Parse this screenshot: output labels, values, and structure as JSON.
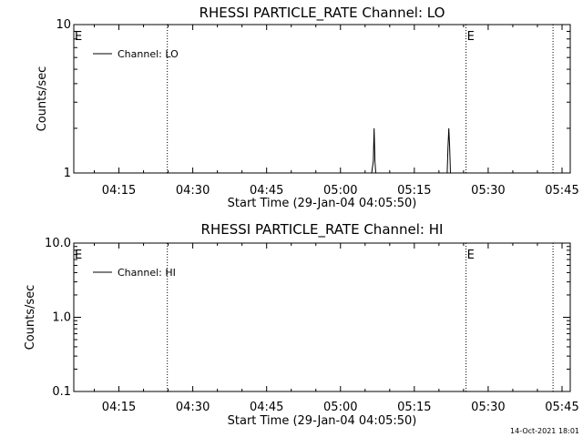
{
  "chart_data": [
    {
      "type": "line",
      "title": "RHESSI PARTICLE_RATE Channel: LO",
      "xlabel": "Start Time (29-Jan-04 04:05:50)",
      "ylabel": "Counts/sec",
      "y_scale": "log",
      "ylim": [
        1,
        10
      ],
      "y_ticks": [
        1,
        10
      ],
      "y_tick_labels": [
        "1",
        "10"
      ],
      "x_range": [
        "04:05:50",
        "05:46:40"
      ],
      "x_tick_labels": [
        "04:15",
        "04:30",
        "04:45",
        "05:00",
        "05:15",
        "05:30",
        "05:45"
      ],
      "x_ticks_time": [
        "04:15",
        "04:30",
        "04:45",
        "05:00",
        "05:15",
        "05:30",
        "05:45"
      ],
      "eclipse_lines": [
        "04:24:50",
        "05:25:30",
        "05:43:10"
      ],
      "eclipse_marker": "E",
      "eclipse_marker_at": [
        "04:05:50",
        "05:25:30"
      ],
      "legend": {
        "position": "top-left",
        "label": "Channel: LO"
      },
      "series": [
        {
          "name": "Channel: LO",
          "points": [
            [
              "05:06:20",
              1.0
            ],
            [
              "05:06:40",
              1.2
            ],
            [
              "05:06:50",
              2.0
            ],
            [
              "05:07:00",
              1.2
            ],
            [
              "05:07:10",
              1.0
            ],
            [
              "05:21:40",
              1.0
            ],
            [
              "05:21:50",
              1.5
            ],
            [
              "05:22:00",
              2.0
            ],
            [
              "05:22:10",
              1.5
            ],
            [
              "05:22:20",
              1.0
            ]
          ]
        }
      ]
    },
    {
      "type": "line",
      "title": "RHESSI PARTICLE_RATE Channel: HI",
      "xlabel": "Start Time (29-Jan-04 04:05:50)",
      "ylabel": "Counts/sec",
      "y_scale": "log",
      "ylim": [
        0.1,
        10
      ],
      "y_ticks": [
        0.1,
        1,
        10
      ],
      "y_tick_labels": [
        "0.1",
        "1.0",
        "10.0"
      ],
      "x_range": [
        "04:05:50",
        "05:46:40"
      ],
      "x_tick_labels": [
        "04:15",
        "04:30",
        "04:45",
        "05:00",
        "05:15",
        "05:30",
        "05:45"
      ],
      "x_ticks_time": [
        "04:15",
        "04:30",
        "04:45",
        "05:00",
        "05:15",
        "05:30",
        "05:45"
      ],
      "eclipse_lines": [
        "04:24:50",
        "05:25:30",
        "05:43:10"
      ],
      "eclipse_marker": "E",
      "eclipse_marker_at": [
        "04:05:50",
        "05:25:30"
      ],
      "legend": {
        "position": "top-left",
        "label": "Channel: HI"
      },
      "series": [
        {
          "name": "Channel: HI",
          "points": []
        }
      ]
    }
  ],
  "footer": {
    "timestamp": "14-Oct-2021 18:01"
  },
  "colors": {
    "background": "#ffffff",
    "foreground": "#000000"
  }
}
